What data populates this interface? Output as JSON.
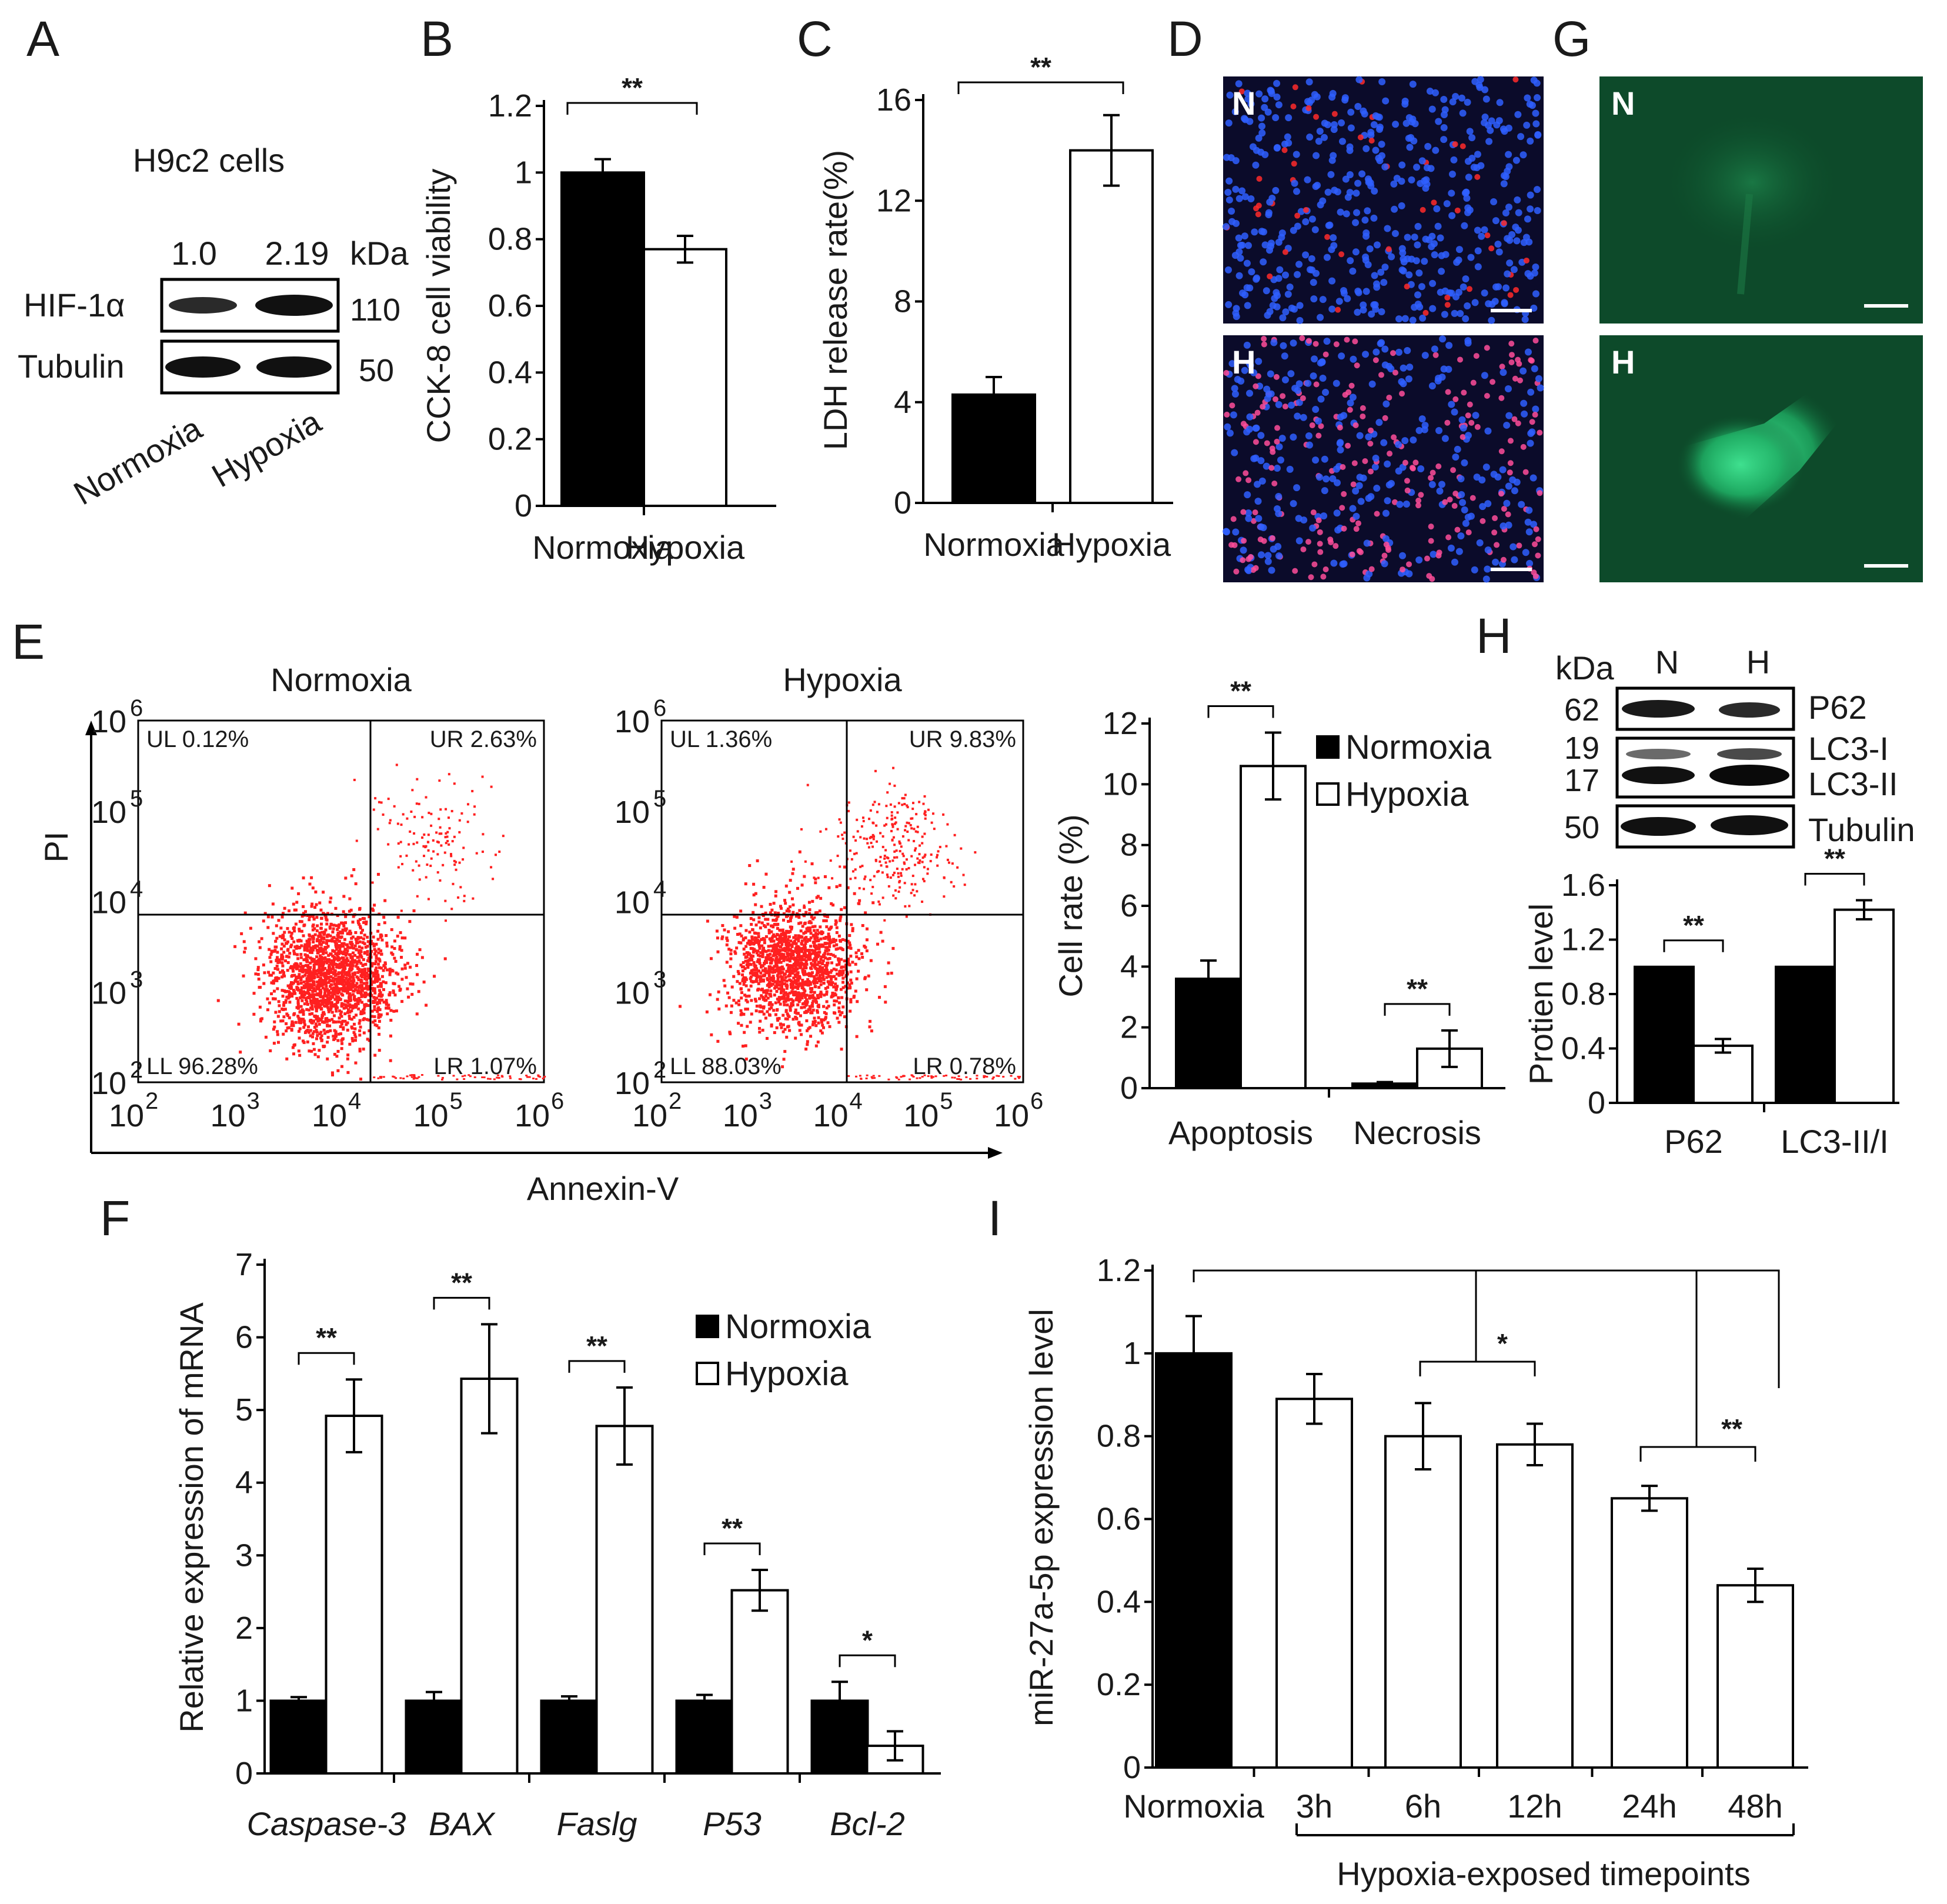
{
  "panels": {
    "A": {
      "letter": "A",
      "title": "H9c2 cells",
      "ratios": [
        "1.0",
        "2.19"
      ],
      "kda": "kDa",
      "bands": [
        {
          "label": "HIF-1α",
          "kda": "110"
        },
        {
          "label": "Tubulin",
          "kda": "50"
        }
      ],
      "lanes": [
        "Normoxia",
        "Hypoxia"
      ]
    },
    "B": {
      "letter": "B",
      "sig": "**"
    },
    "C": {
      "letter": "C",
      "sig": "**"
    },
    "D": {
      "letter": "D",
      "tags": [
        "N",
        "H"
      ]
    },
    "E": {
      "letter": "E",
      "plots": [
        {
          "title": "Normoxia",
          "UL": "UL 0.12%",
          "UR": "UR 2.63%",
          "LL": "LL 96.28%",
          "LR": "LR 1.07%"
        },
        {
          "title": "Hypoxia",
          "UL": "UL 1.36%",
          "UR": "UR 9.83%",
          "LL": "LL 88.03%",
          "LR": "LR 0.78%"
        }
      ],
      "flow_ylabel": "PI",
      "flow_xlabel": "Annexin-V",
      "flow_ticks": [
        "10",
        "10",
        "10",
        "10",
        "10"
      ],
      "flow_exps": [
        "2",
        "3",
        "4",
        "5",
        "6"
      ]
    },
    "F": {
      "letter": "F"
    },
    "G": {
      "letter": "G",
      "tags": [
        "N",
        "H"
      ]
    },
    "H": {
      "letter": "H",
      "kda": "kDa",
      "lanes": [
        "N",
        "H"
      ],
      "rows": [
        {
          "kda": "62",
          "label": "P62"
        },
        {
          "kda": "19",
          "label": "LC3-I"
        },
        {
          "kda": "17",
          "label": "LC3-II"
        },
        {
          "kda": "50",
          "label": "Tubulin"
        }
      ]
    },
    "I": {
      "letter": "I",
      "group_label": "Hypoxia-exposed timepoints"
    }
  },
  "chart_data": [
    {
      "id": "B",
      "type": "bar",
      "categories": [
        "Normoxia",
        "Hypoxia"
      ],
      "values": [
        1.0,
        0.77
      ],
      "errors": [
        0.04,
        0.04
      ],
      "ylabel": "CCK-8 cell viability",
      "ylim": [
        0,
        1.2
      ],
      "yticks": [
        "0",
        "0.2",
        "0.4",
        "0.6",
        "0.8",
        "1",
        "1.2"
      ],
      "colors": [
        "#000000",
        "#ffffff"
      ],
      "significance": [
        {
          "between": [
            0,
            1
          ],
          "label": "**"
        }
      ]
    },
    {
      "id": "C",
      "type": "bar",
      "categories": [
        "Normoxia",
        "Hypoxia"
      ],
      "values": [
        4.3,
        14.0
      ],
      "errors": [
        0.7,
        1.4
      ],
      "ylabel": "LDH release rate(%)",
      "ylim": [
        0,
        16
      ],
      "yticks": [
        "0",
        "4",
        "8",
        "12",
        "16"
      ],
      "colors": [
        "#000000",
        "#ffffff"
      ],
      "significance": [
        {
          "between": [
            0,
            1
          ],
          "label": "**"
        }
      ]
    },
    {
      "id": "E-bar",
      "type": "bar",
      "categories": [
        "Apoptosis",
        "Necrosis"
      ],
      "series": [
        {
          "name": "Normoxia",
          "values": [
            3.6,
            0.15
          ],
          "errors": [
            0.6,
            0.05
          ],
          "color": "#000000"
        },
        {
          "name": "Hypoxia",
          "values": [
            10.6,
            1.3
          ],
          "errors": [
            1.1,
            0.6
          ],
          "color": "#ffffff"
        }
      ],
      "ylabel": "Cell rate (%)",
      "ylim": [
        0,
        12
      ],
      "yticks": [
        "0",
        "2",
        "4",
        "6",
        "8",
        "10",
        "12"
      ],
      "legend": "top-right",
      "significance": [
        {
          "category": 0,
          "label": "**"
        },
        {
          "category": 1,
          "label": "**"
        }
      ]
    },
    {
      "id": "H-bar",
      "type": "bar",
      "categories": [
        "P62",
        "LC3-II/I"
      ],
      "series": [
        {
          "name": "N",
          "values": [
            1.0,
            1.0
          ],
          "errors": [
            0,
            0
          ],
          "color": "#000000"
        },
        {
          "name": "H",
          "values": [
            0.42,
            1.42
          ],
          "errors": [
            0.05,
            0.07
          ],
          "color": "#ffffff"
        }
      ],
      "ylabel": "Protien level",
      "ylim": [
        0,
        1.6
      ],
      "yticks": [
        "0",
        "0.4",
        "0.8",
        "1.2",
        "1.6"
      ],
      "significance": [
        {
          "category": 0,
          "label": "**"
        },
        {
          "category": 1,
          "label": "**"
        }
      ]
    },
    {
      "id": "F",
      "type": "bar",
      "categories": [
        "Caspase-3",
        "BAX",
        "Faslg",
        "P53",
        "Bcl-2"
      ],
      "series": [
        {
          "name": "Normoxia",
          "values": [
            1.0,
            1.0,
            1.0,
            1.0,
            1.0
          ],
          "errors": [
            0.05,
            0.12,
            0.06,
            0.08,
            0.26
          ],
          "color": "#000000"
        },
        {
          "name": "Hypoxia",
          "values": [
            4.92,
            5.43,
            4.78,
            2.52,
            0.38
          ],
          "errors": [
            0.5,
            0.75,
            0.53,
            0.28,
            0.2
          ],
          "color": "#ffffff"
        }
      ],
      "ylabel": "Relative expression of mRNA",
      "ylim": [
        0,
        7
      ],
      "yticks": [
        "0",
        "1",
        "2",
        "3",
        "4",
        "5",
        "6",
        "7"
      ],
      "legend": "top-right",
      "significance": [
        {
          "category": 0,
          "label": "**"
        },
        {
          "category": 1,
          "label": "**"
        },
        {
          "category": 2,
          "label": "**"
        },
        {
          "category": 3,
          "label": "**"
        },
        {
          "category": 4,
          "label": "*"
        }
      ]
    },
    {
      "id": "I",
      "type": "bar",
      "categories": [
        "Normoxia",
        "3h",
        "6h",
        "12h",
        "24h",
        "48h"
      ],
      "values": [
        1.0,
        0.89,
        0.8,
        0.78,
        0.65,
        0.44
      ],
      "errors": [
        0.09,
        0.06,
        0.08,
        0.05,
        0.03,
        0.04
      ],
      "colors": [
        "#000000",
        "#ffffff",
        "#ffffff",
        "#ffffff",
        "#ffffff",
        "#ffffff"
      ],
      "ylabel": "miR-27a-5p expression level",
      "ylim": [
        0,
        1.2
      ],
      "yticks": [
        "0",
        "0.2",
        "0.4",
        "0.6",
        "0.8",
        "1",
        "1.2"
      ],
      "significance": [
        {
          "between": [
            2,
            3
          ],
          "label": "*"
        },
        {
          "between": [
            4,
            5
          ],
          "label": "**"
        }
      ]
    }
  ]
}
